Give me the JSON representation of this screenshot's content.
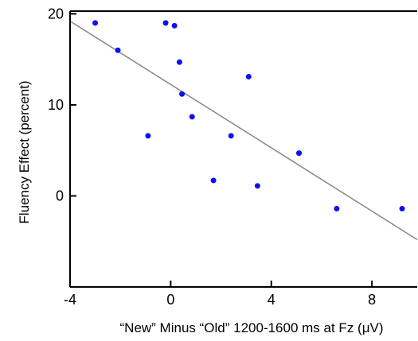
{
  "chart_data": {
    "type": "scatter",
    "xlabel": "“New” Minus “Old” 1200-1600 ms at Fz (μV)",
    "ylabel": "Fluency Effect (percent)",
    "xlim": [
      -4,
      9.8
    ],
    "ylim": [
      -10,
      20.3
    ],
    "x_ticks": [
      -4,
      0,
      4,
      8
    ],
    "x_tick_labels": [
      "-4",
      "0",
      "4",
      "8"
    ],
    "y_ticks": [
      0,
      10,
      20
    ],
    "y_tick_labels": [
      "0",
      "10",
      "20"
    ],
    "grid": false,
    "point_color": "#1010ee",
    "line_color": "#888888",
    "points": [
      {
        "x": -3.0,
        "y": 19.0
      },
      {
        "x": -2.1,
        "y": 16.0
      },
      {
        "x": -0.9,
        "y": 6.6
      },
      {
        "x": -0.2,
        "y": 19.0
      },
      {
        "x": 0.15,
        "y": 18.7
      },
      {
        "x": 0.35,
        "y": 14.7
      },
      {
        "x": 0.45,
        "y": 11.2
      },
      {
        "x": 0.85,
        "y": 8.7
      },
      {
        "x": 1.7,
        "y": 1.7
      },
      {
        "x": 2.4,
        "y": 6.6
      },
      {
        "x": 3.1,
        "y": 13.1
      },
      {
        "x": 3.45,
        "y": 1.1
      },
      {
        "x": 5.1,
        "y": 4.7
      },
      {
        "x": 6.6,
        "y": -1.4
      },
      {
        "x": 9.2,
        "y": -1.4
      }
    ],
    "trendline": {
      "x": [
        -4,
        9.8
      ],
      "y": [
        19.2,
        -4.8
      ]
    }
  }
}
